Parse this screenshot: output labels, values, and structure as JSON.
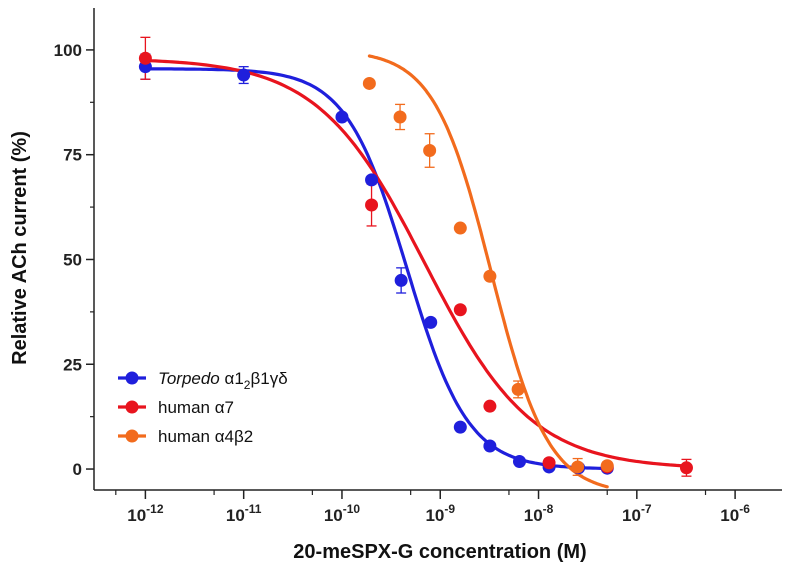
{
  "chart_data": {
    "type": "scatter",
    "title": "",
    "xlabel": "20-meSPX-G concentration (M)",
    "ylabel": "Relative ACh current (%)",
    "xscale": "log",
    "xlim": [
      3e-13,
      3e-06
    ],
    "ylim": [
      -5,
      110
    ],
    "xticks": [
      {
        "value": 1e-12,
        "base": "10",
        "exp": "-12"
      },
      {
        "value": 1e-11,
        "base": "10",
        "exp": "-11"
      },
      {
        "value": 1e-10,
        "base": "10",
        "exp": "-10"
      },
      {
        "value": 1e-09,
        "base": "10",
        "exp": "-9"
      },
      {
        "value": 1e-08,
        "base": "10",
        "exp": "-8"
      },
      {
        "value": 1e-07,
        "base": "10",
        "exp": "-7"
      },
      {
        "value": 1e-06,
        "base": "10",
        "exp": "-6"
      }
    ],
    "yticks": [
      0,
      25,
      50,
      75,
      100
    ],
    "grid": false,
    "legend_position": "bottom-left",
    "series": [
      {
        "legend_italic": "Torpedo",
        "legend_rest": " α1",
        "legend_sub": "2",
        "legend_tail": "β1γδ",
        "color": "#1f1fdc",
        "points": [
          {
            "x": 1e-12,
            "y": 96,
            "err": 3
          },
          {
            "x": 1e-11,
            "y": 94,
            "err": 2
          },
          {
            "x": 1e-10,
            "y": 84,
            "err": 0
          },
          {
            "x": 2e-10,
            "y": 69,
            "err": 0
          },
          {
            "x": 4e-10,
            "y": 45,
            "err": 3
          },
          {
            "x": 8e-10,
            "y": 35,
            "err": 0
          },
          {
            "x": 1.6e-09,
            "y": 10,
            "err": 0
          },
          {
            "x": 3.2e-09,
            "y": 5.5,
            "err": 0
          },
          {
            "x": 6.4e-09,
            "y": 1.8,
            "err": 0
          },
          {
            "x": 1.28e-08,
            "y": 0.5,
            "err": 0
          },
          {
            "x": 2.56e-08,
            "y": 0.3,
            "err": 0
          },
          {
            "x": 5e-08,
            "y": 0.2,
            "err": 0
          }
        ],
        "fit": {
          "top": 95.5,
          "bottom": 0,
          "ic50": 4.6e-10,
          "hill": 1.4,
          "xmin": 1e-12,
          "xmax": 5e-08
        }
      },
      {
        "legend_italic": "",
        "legend_rest": "human α7",
        "legend_sub": "",
        "legend_tail": "",
        "color": "#e8141e",
        "points": [
          {
            "x": 1e-12,
            "y": 98,
            "err": 5
          },
          {
            "x": 2e-10,
            "y": 63,
            "err": 5
          },
          {
            "x": 1.6e-09,
            "y": 38,
            "err": 0
          },
          {
            "x": 3.2e-09,
            "y": 15,
            "err": 0
          },
          {
            "x": 1.28e-08,
            "y": 1.5,
            "err": 0
          },
          {
            "x": 5e-08,
            "y": 0.5,
            "err": 0
          },
          {
            "x": 3.2e-07,
            "y": 0.3,
            "err": 2
          }
        ],
        "fit": {
          "top": 98,
          "bottom": 0,
          "ic50": 7e-10,
          "hill": 0.8,
          "xmin": 1e-12,
          "xmax": 3.2e-07
        }
      },
      {
        "legend_italic": "",
        "legend_rest": "human α4β2",
        "legend_sub": "",
        "legend_tail": "",
        "color": "#f26b1d",
        "points": [
          {
            "x": 1.9e-10,
            "y": 92,
            "err": 0
          },
          {
            "x": 3.9e-10,
            "y": 84,
            "err": 3
          },
          {
            "x": 7.8e-10,
            "y": 76,
            "err": 4
          },
          {
            "x": 1.6e-09,
            "y": 57.5,
            "err": 0
          },
          {
            "x": 3.2e-09,
            "y": 46,
            "err": 0
          },
          {
            "x": 6.2e-09,
            "y": 19,
            "err": 2
          },
          {
            "x": 2.5e-08,
            "y": 0.5,
            "err": 2
          },
          {
            "x": 5e-08,
            "y": 0.8,
            "err": 0
          }
        ],
        "fit": {
          "top": 100,
          "bottom": -6,
          "ic50": 3.3e-09,
          "hill": 1.5,
          "xmin": 1.9e-10,
          "xmax": 5e-08
        }
      }
    ]
  }
}
